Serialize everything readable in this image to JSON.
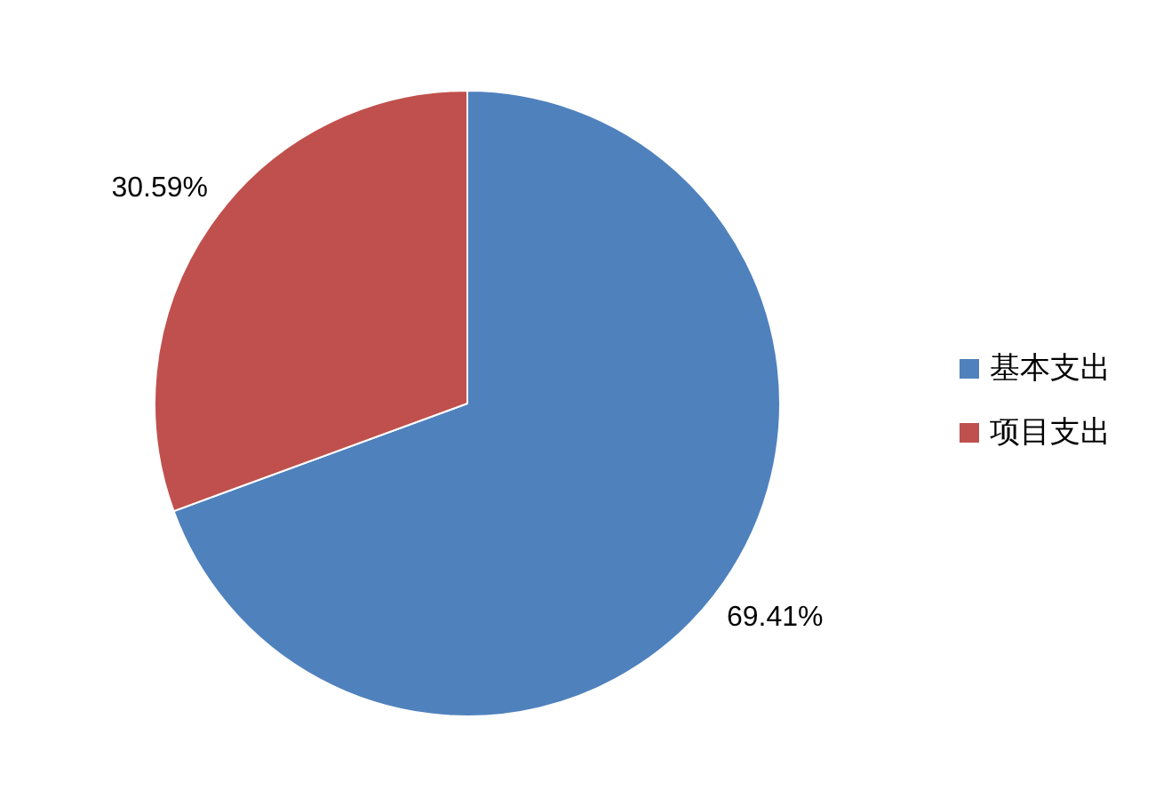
{
  "chart_data": {
    "type": "pie",
    "categories": [
      "基本支出",
      "项目支出"
    ],
    "values": [
      69.41,
      30.59
    ],
    "colors": [
      "#4f81bd",
      "#c0504d"
    ],
    "value_labels": [
      "69.41%",
      "30.59%"
    ],
    "legend": "right"
  }
}
